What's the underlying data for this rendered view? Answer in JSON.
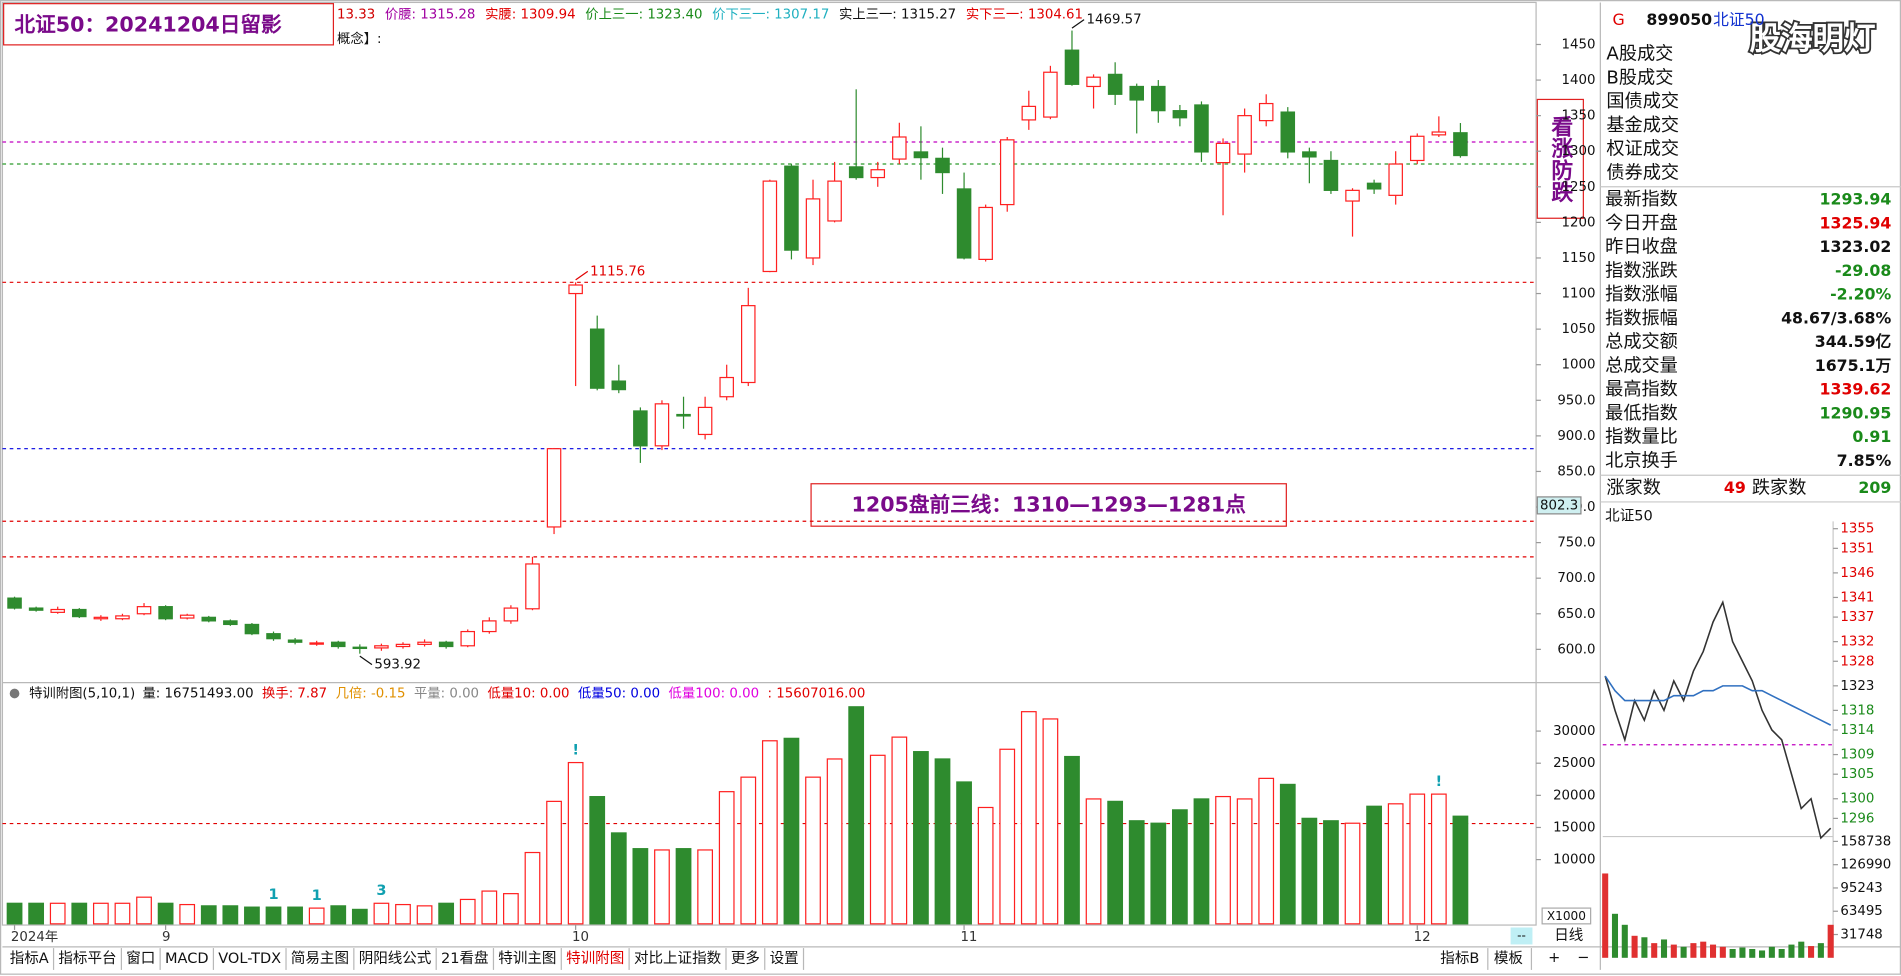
{
  "header": {
    "title": "北证50：20241204日留影",
    "items": [
      {
        "text": "13.33",
        "color": "#d00000"
      },
      {
        "text": "价腰: 1315.28",
        "color": "#a000a0"
      },
      {
        "text": "实腰: 1309.94",
        "color": "#e00000"
      },
      {
        "text": "价上三一: 1323.40",
        "color": "#1a8a1a"
      },
      {
        "text": "价下三一: 1307.17",
        "color": "#20b0c0"
      },
      {
        "text": "实上三一: 1315.27",
        "color": "#111111"
      },
      {
        "text": "实下三一: 1304.61",
        "color": "#e00000"
      }
    ],
    "sub": "概念】:"
  },
  "note": "1205盘前三线：1310—1293—1281点",
  "side_label": "看涨防跌",
  "watermark": "股海明灯",
  "chart_data": [
    {
      "type": "candlestick",
      "categories": [
        "2024年",
        null,
        null,
        null,
        null,
        null,
        null,
        "9",
        null,
        null,
        null,
        null,
        null,
        null,
        null,
        null,
        null,
        null,
        null,
        null,
        null,
        null,
        null,
        null,
        null,
        null,
        "10",
        null,
        null,
        null,
        null,
        null,
        null,
        null,
        null,
        null,
        null,
        null,
        null,
        null,
        null,
        null,
        null,
        null,
        "11",
        null,
        null,
        null,
        null,
        null,
        null,
        null,
        null,
        null,
        null,
        null,
        null,
        null,
        null,
        null,
        null,
        null,
        null,
        null,
        null,
        "12",
        null,
        null
      ],
      "open": [
        672,
        658,
        652,
        656,
        643,
        643,
        650,
        660,
        644,
        645,
        640,
        635,
        622,
        613,
        608,
        610,
        603,
        602,
        604,
        607,
        610,
        605,
        625,
        640,
        657,
        772,
        1100,
        1050,
        977,
        935,
        886,
        930,
        902,
        955,
        975,
        1131,
        1279,
        1150,
        1202,
        1278,
        1263,
        1289,
        1299,
        1290,
        1247,
        1148,
        1225,
        1344,
        1348,
        1442,
        1391,
        1408,
        1391,
        1391,
        1357,
        1365,
        1284,
        1296,
        1343,
        1355,
        1299,
        1287,
        1230,
        1255,
        1238,
        1287,
        1323,
        1325.94
      ],
      "high": [
        674,
        660,
        660,
        658,
        648,
        650,
        665,
        662,
        650,
        647,
        642,
        637,
        625,
        616,
        612,
        612,
        607,
        608,
        610,
        614,
        612,
        628,
        645,
        662,
        730,
        883,
        1115.76,
        1069,
        1000,
        940,
        950,
        955,
        955,
        1000,
        1108,
        1260,
        1282,
        1260,
        1285,
        1387,
        1285,
        1340,
        1335,
        1305,
        1270,
        1225,
        1320,
        1385,
        1420,
        1469.57,
        1408,
        1425,
        1395,
        1400,
        1365,
        1370,
        1318,
        1360,
        1380,
        1362,
        1305,
        1300,
        1248,
        1260,
        1300,
        1325,
        1349,
        1339.62
      ],
      "low": [
        656,
        653,
        650,
        644,
        640,
        641,
        648,
        641,
        642,
        638,
        633,
        620,
        612,
        607,
        605,
        601,
        593.92,
        598,
        601,
        604,
        601,
        603,
        622,
        636,
        655,
        762,
        970,
        964,
        960,
        862,
        880,
        910,
        895,
        950,
        970,
        1130,
        1148,
        1140,
        1200,
        1260,
        1250,
        1282,
        1260,
        1240,
        1148,
        1145,
        1215,
        1330,
        1345,
        1392,
        1360,
        1365,
        1325,
        1340,
        1335,
        1285,
        1210,
        1270,
        1335,
        1290,
        1255,
        1240,
        1180,
        1240,
        1225,
        1282,
        1320,
        1290.95
      ],
      "close": [
        658,
        655,
        656,
        646,
        645,
        647,
        660,
        643,
        648,
        640,
        635,
        622,
        615,
        610,
        609,
        604,
        602,
        605,
        607,
        610,
        604,
        625,
        640,
        658,
        720,
        882,
        1112,
        967,
        965,
        886,
        945,
        928,
        940,
        982,
        1083,
        1258,
        1161,
        1233,
        1258,
        1263,
        1274,
        1320,
        1291,
        1270,
        1150,
        1221,
        1316,
        1363,
        1411,
        1394,
        1404,
        1380,
        1372,
        1357,
        1347,
        1299,
        1311,
        1350,
        1367,
        1299,
        1292,
        1245,
        1245,
        1247,
        1282,
        1321,
        1327,
        1293.94
      ],
      "up_color": "#ff2020",
      "down_color": "#2e8b2e",
      "ylim": [
        555,
        1475
      ],
      "yticks": [
        {
          "value": 600,
          "label": "600.0"
        },
        {
          "value": 650,
          "label": "650.0"
        },
        {
          "value": 700,
          "label": "700.0"
        },
        {
          "value": 750,
          "label": "750.0"
        },
        {
          "value": 800,
          "label": "800.0"
        },
        {
          "value": 850,
          "label": "850.0"
        },
        {
          "value": 900,
          "label": "900.0"
        },
        {
          "value": 950,
          "label": "950.0"
        },
        1000,
        1050,
        1100,
        1150,
        1200,
        1250,
        1300,
        1350,
        1400,
        1450
      ],
      "hlines": [
        {
          "value": 1313,
          "color": "#c000c0"
        },
        {
          "value": 1282,
          "color": "#2a9a2a"
        },
        {
          "value": 1115.76,
          "color": "#e00000"
        },
        {
          "value": 882,
          "color": "#0000e0"
        },
        {
          "value": 780,
          "color": "#e00000"
        },
        {
          "value": 730,
          "color": "#e00000"
        }
      ],
      "annotations": [
        {
          "x": 49,
          "value": 1469.57,
          "color": "#111111",
          "place": "above"
        },
        {
          "x": 26,
          "value": 1115.76,
          "color": "#e00000",
          "place": "above"
        },
        {
          "x": 16,
          "value": 593.92,
          "color": "#111111",
          "place": "below"
        }
      ],
      "cursor_value": 802.3
    },
    {
      "type": "bar",
      "title": "特训附图(5,10,1)",
      "items": [
        {
          "text": "量: 16751493.00",
          "color": "#111111"
        },
        {
          "text": "换手: 7.87",
          "color": "#e00000"
        },
        {
          "text": "几倍: -0.15",
          "color": "#e09000"
        },
        {
          "text": "平量: 0.00",
          "color": "#888888"
        },
        {
          "text": "低量10: 0.00",
          "color": "#e00000"
        },
        {
          "text": "低量50: 0.00",
          "color": "#0000e0"
        },
        {
          "text": "低量100: 0.00",
          "color": "#e000e0"
        },
        {
          "text": ": 15607016.00",
          "color": "#e00000"
        }
      ],
      "values": [
        3200,
        3200,
        3200,
        3200,
        3200,
        3200,
        4150,
        3200,
        3000,
        2800,
        2800,
        2600,
        2600,
        2600,
        2450,
        2800,
        2250,
        3200,
        3000,
        2800,
        3200,
        3800,
        5100,
        4700,
        11100,
        19060,
        25100,
        19800,
        14150,
        11700,
        11500,
        11700,
        11500,
        20570,
        22830,
        28490,
        28870,
        22830,
        25660,
        33780,
        26230,
        29060,
        26800,
        25660,
        22080,
        18110,
        27170,
        33020,
        31890,
        26040,
        19440,
        19060,
        16040,
        15660,
        17740,
        19440,
        19810,
        19440,
        22640,
        21700,
        16420,
        16040,
        15660,
        18300,
        18680,
        20190,
        20190,
        16751
      ],
      "up_color": "#ff2020",
      "down_color": "#2e8b2e",
      "ylim": [
        0,
        34340
      ],
      "yticks": [
        10000,
        15000,
        20000,
        25000,
        30000
      ],
      "hlines": [
        {
          "value": 15607,
          "color": "#e00000"
        }
      ],
      "markers": [
        {
          "x": 12,
          "label": 1,
          "color": "#10a0b0"
        },
        {
          "x": 14,
          "label": 1,
          "color": "#10a0b0"
        },
        {
          "x": 17,
          "label": 3,
          "color": "#10a0b0"
        },
        {
          "x": 26,
          "label": "!",
          "color": "#10a0b0"
        },
        {
          "x": 66,
          "label": "!",
          "color": "#10a0b0"
        }
      ],
      "unit_label": "X1000"
    },
    {
      "type": "line",
      "title": "北证50",
      "base": 1323.02,
      "series": [
        {
          "color": "#333333",
          "values": [
            1325,
            1318,
            1312,
            1320,
            1316,
            1322,
            1318,
            1324,
            1320,
            1326,
            1330,
            1336,
            1340,
            1332,
            1328,
            1324,
            1318,
            1314,
            1312,
            1305,
            1298,
            1300,
            1292,
            1294
          ]
        },
        {
          "color": "#3070c0",
          "values": [
            1325,
            1322,
            1320,
            1320,
            1320,
            1320,
            1320,
            1321,
            1321,
            1321,
            1322,
            1322,
            1323,
            1323,
            1323,
            1322,
            1322,
            1321,
            1320,
            1319,
            1318,
            1317,
            1316,
            1315
          ]
        }
      ],
      "ylim": [
        1292.3,
        1356.5
      ],
      "yticks": [
        1296,
        1300,
        1305,
        1309,
        1314,
        1318,
        1323,
        1328,
        1332,
        1337,
        1341,
        1346,
        1351,
        1355
      ],
      "hlines": [
        {
          "value": 1311,
          "color": "#c000c0"
        }
      ],
      "up_color": "#e00000",
      "down_color": "#1a8a1a",
      "flat_color": "#111111"
    },
    {
      "type": "bar",
      "values": [
        115000,
        60000,
        45000,
        30000,
        28000,
        20000,
        25000,
        18000,
        15000,
        20000,
        22000,
        18000,
        15000,
        12000,
        14000,
        12000,
        10000,
        15000,
        12000,
        18000,
        22000,
        16000,
        20000,
        45000
      ],
      "up_color": "#e03030",
      "down_color": "#2e8b2e",
      "ylim": [
        0,
        165340
      ],
      "yticks": [
        31748,
        63495,
        95243,
        126990,
        158738
      ]
    }
  ],
  "quote": {
    "prefix": "G",
    "code": "899050",
    "name": "北证50",
    "volumes": [
      "A股成交",
      "B股成交",
      "国债成交",
      "基金成交",
      "权证成交",
      "债券成交"
    ],
    "rows": [
      {
        "label": "最新指数",
        "value": "1293.94",
        "color": "#1a8a1a"
      },
      {
        "label": "今日开盘",
        "value": "1325.94",
        "color": "#e00000"
      },
      {
        "label": "昨日收盘",
        "value": "1323.02",
        "color": "#111111"
      },
      {
        "label": "指数涨跌",
        "value": "-29.08",
        "color": "#1a8a1a"
      },
      {
        "label": "指数涨幅",
        "value": "-2.20%",
        "color": "#1a8a1a"
      },
      {
        "label": "指数振幅",
        "value": "48.67/3.68%",
        "color": "#111111"
      },
      {
        "label": "总成交额",
        "value": "344.59亿",
        "color": "#111111"
      },
      {
        "label": "总成交量",
        "value": "1675.1万",
        "color": "#111111"
      },
      {
        "label": "最高指数",
        "value": "1339.62",
        "color": "#e00000"
      },
      {
        "label": "最低指数",
        "value": "1290.95",
        "color": "#1a8a1a"
      },
      {
        "label": "指数量比",
        "value": "0.91",
        "color": "#1a8a1a"
      },
      {
        "label": "北京换手",
        "value": "7.85%",
        "color": "#111111"
      }
    ],
    "breadth": {
      "up_label": "涨家数",
      "up": 49,
      "down_label": "跌家数",
      "down": 209
    }
  },
  "tabs": {
    "left": [
      "指标A",
      "指标平台",
      "窗口",
      "MACD",
      "VOL-TDX",
      "简易主图",
      "阴阳线公式",
      "21看盘",
      "特训主图",
      "特训附图",
      "对比上证指数",
      "更多",
      "设置"
    ],
    "active": 9,
    "right": [
      "指标B",
      "模板"
    ]
  },
  "axis_controls": {
    "period": "日线",
    "zoom_in": "+",
    "zoom_out": "−",
    "scroll": "--"
  }
}
